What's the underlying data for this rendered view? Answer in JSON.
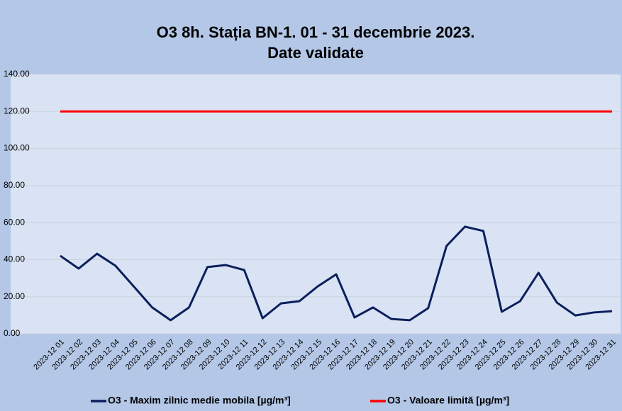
{
  "chart_data": {
    "type": "line",
    "title_lines": [
      "O3 8h. Stația BN-1. 01 - 31 decembrie 2023.",
      "Date validate"
    ],
    "categories": [
      "2023-12 01",
      "2023-12 02",
      "2023-12 03",
      "2023-12 04",
      "2023-12 05",
      "2023-12 06",
      "2023-12 07",
      "2023-12 08",
      "2023-12 09",
      "2023-12 10",
      "2023-12 11",
      "2023-12 12",
      "2023-12 13",
      "2023-12 14",
      "2023-12 15",
      "2023-12 16",
      "2023-12 17",
      "2023-12 18",
      "2023-12 19",
      "2023-12 20",
      "2023-12 21",
      "2023-12 22",
      "2023-12 23",
      "2023-12 24",
      "2023-12 25",
      "2023-12 26",
      "2023-12 27",
      "2023-12 28",
      "2023-12 29",
      "2023-12 30",
      "2023-12 31"
    ],
    "series": [
      {
        "name": "O3 - Maxim zilnic medie mobila [µg/m³]",
        "color": "#0c1f5c",
        "values": [
          42.1,
          35.2,
          43.2,
          36.7,
          25.5,
          14.2,
          7.3,
          14.2,
          36,
          37.1,
          34.4,
          8.4,
          16.4,
          17.6,
          25.6,
          32.1,
          8.8,
          14.2,
          8,
          7.3,
          13.8,
          47.4,
          57.8,
          55.5,
          11.9,
          17.6,
          32.9,
          16.8,
          9.9,
          11.5,
          12.2
        ]
      },
      {
        "name": "O3 - Valoare limită [µg/m³]",
        "color": "#ff0000",
        "values": [
          120,
          120,
          120,
          120,
          120,
          120,
          120,
          120,
          120,
          120,
          120,
          120,
          120,
          120,
          120,
          120,
          120,
          120,
          120,
          120,
          120,
          120,
          120,
          120,
          120,
          120,
          120,
          120,
          120,
          120,
          120
        ]
      }
    ],
    "ylim": [
      0,
      140
    ],
    "yticks": [
      {
        "value": 0,
        "label": "0.00"
      },
      {
        "value": 20,
        "label": "20.00"
      },
      {
        "value": 40,
        "label": "40.00"
      },
      {
        "value": 60,
        "label": "60.00"
      },
      {
        "value": 80,
        "label": "80.00"
      },
      {
        "value": 100,
        "label": "100.00"
      },
      {
        "value": 120,
        "label": "120.00"
      },
      {
        "value": 140,
        "label": "140.00"
      }
    ],
    "grid": true,
    "legend": "bottom"
  }
}
